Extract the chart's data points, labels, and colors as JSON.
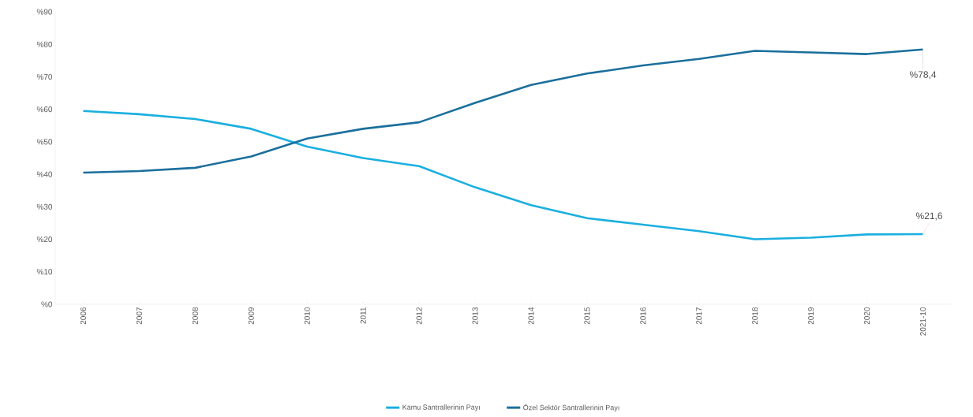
{
  "chart_data": {
    "type": "line",
    "categories": [
      "2006",
      "2007",
      "2008",
      "2009",
      "2010",
      "2011",
      "2012",
      "2013",
      "2014",
      "2015",
      "2016",
      "2017",
      "2018",
      "2019",
      "2020",
      "2021-10"
    ],
    "series": [
      {
        "name": "Kamu Santrallerinin Payı",
        "color": "#1aafe0",
        "values": [
          59.5,
          58.5,
          57,
          54,
          48.5,
          45,
          42.5,
          36,
          30.5,
          26.5,
          24.5,
          22.5,
          20,
          20.5,
          21.5,
          21.6
        ],
        "value_labels": [
          null,
          null,
          null,
          null,
          null,
          null,
          null,
          null,
          null,
          null,
          null,
          null,
          null,
          null,
          null,
          "%21,6"
        ]
      },
      {
        "name": "Özel Sektör Santrallerinin Payı",
        "color": "#1b6f9c",
        "values": [
          40.5,
          41,
          42,
          45.5,
          51,
          54,
          56,
          62,
          67.5,
          71,
          73.5,
          75.5,
          78,
          77.5,
          77,
          78.4
        ],
        "value_labels": [
          null,
          null,
          null,
          null,
          null,
          null,
          null,
          null,
          null,
          null,
          null,
          null,
          null,
          null,
          null,
          "%78,4"
        ]
      }
    ],
    "ylim": [
      0,
      90
    ],
    "yticks": [
      {
        "value": 0,
        "label": "%0"
      },
      {
        "value": 10,
        "label": "%10"
      },
      {
        "value": 20,
        "label": "%20"
      },
      {
        "value": 30,
        "label": "%30"
      },
      {
        "value": 40,
        "label": "%40"
      },
      {
        "value": 50,
        "label": "%50"
      },
      {
        "value": 60,
        "label": "%60"
      },
      {
        "value": 70,
        "label": "%70"
      },
      {
        "value": 80,
        "label": "%80"
      },
      {
        "value": 90,
        "label": "%90"
      }
    ],
    "grid": false,
    "legend": "bottom",
    "marker": "none",
    "line_style": "solid"
  }
}
